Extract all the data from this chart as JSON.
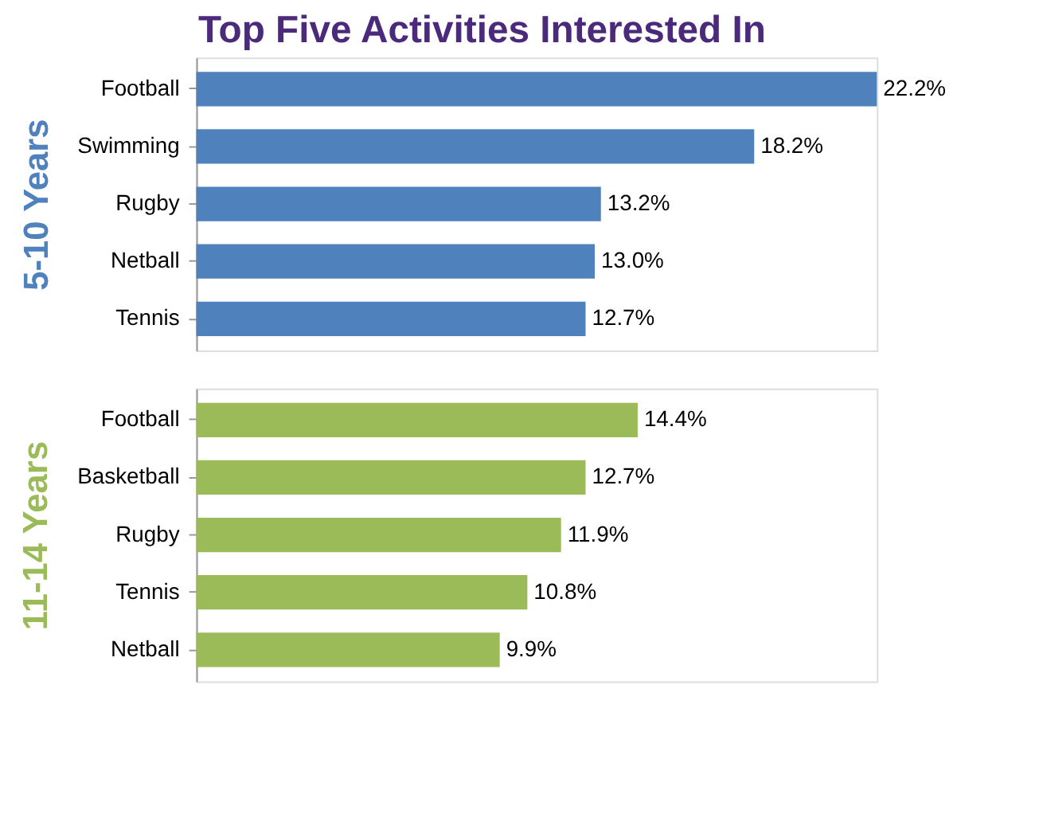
{
  "chart_data": [
    {
      "type": "bar",
      "orientation": "horizontal",
      "title": "Top Five Activities Interested In",
      "ylabel": "5-10 Years",
      "categories": [
        "Football",
        "Swimming",
        "Rugby",
        "Netball",
        "Tennis"
      ],
      "values": [
        22.2,
        18.2,
        13.2,
        13.0,
        12.7
      ],
      "value_labels": [
        "22.2%",
        "18.2%",
        "13.2%",
        "13.0%",
        "12.7%"
      ],
      "color": "#4f81bd"
    },
    {
      "type": "bar",
      "orientation": "horizontal",
      "ylabel": "11-14 Years",
      "categories": [
        "Football",
        "Basketball",
        "Rugby",
        "Tennis",
        "Netball"
      ],
      "values": [
        14.4,
        12.7,
        11.9,
        10.8,
        9.9
      ],
      "value_labels": [
        "14.4%",
        "12.7%",
        "11.9%",
        "10.8%",
        "9.9%"
      ],
      "color": "#9bbb59"
    }
  ]
}
